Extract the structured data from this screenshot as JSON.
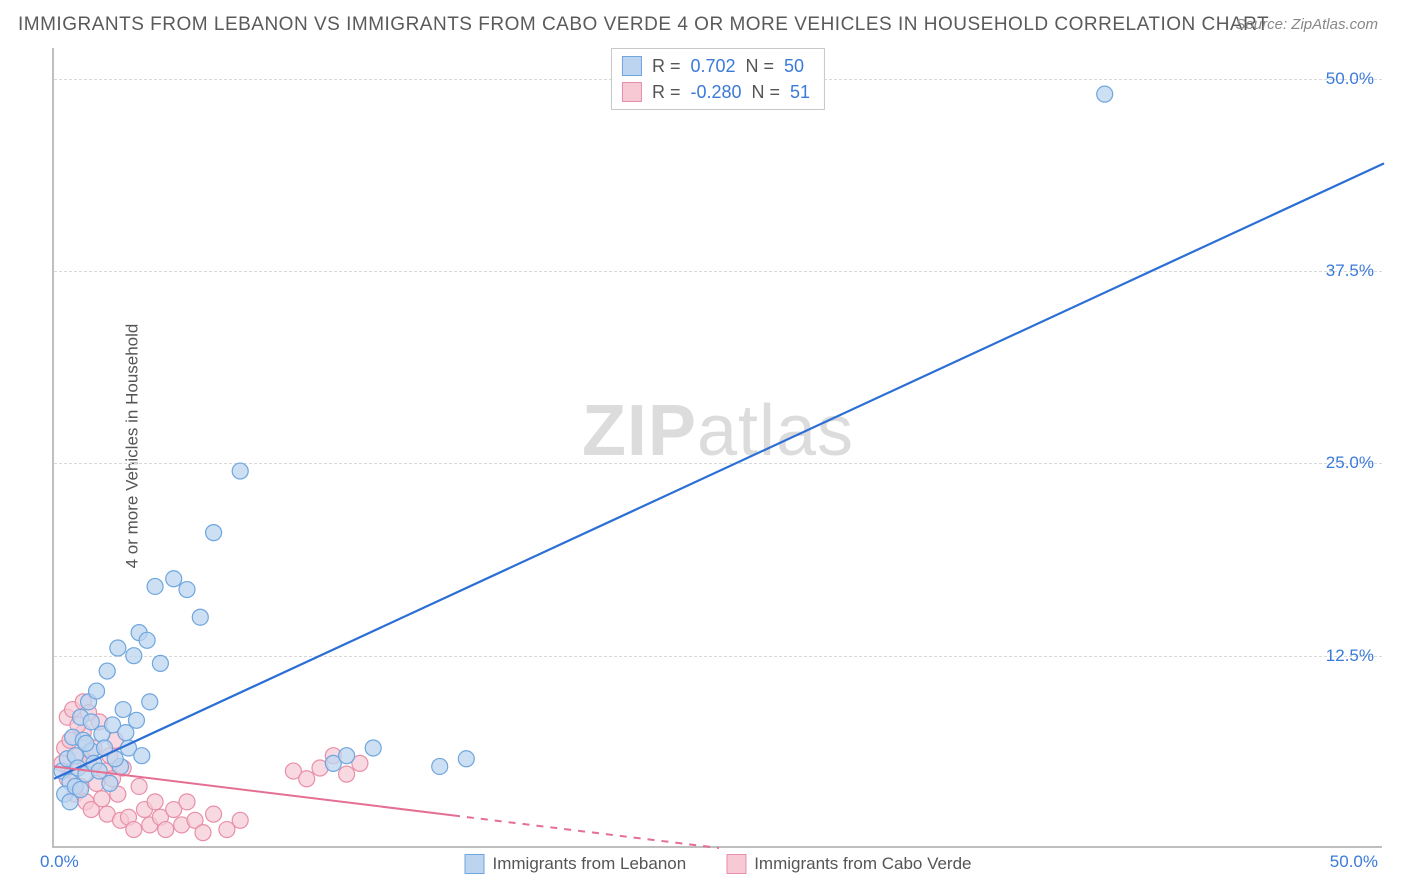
{
  "title": "IMMIGRANTS FROM LEBANON VS IMMIGRANTS FROM CABO VERDE 4 OR MORE VEHICLES IN HOUSEHOLD CORRELATION CHART",
  "source": "Source: ZipAtlas.com",
  "ylabel": "4 or more Vehicles in Household",
  "watermark_bold": "ZIP",
  "watermark_rest": "atlas",
  "chart": {
    "type": "scatter",
    "background_color": "#ffffff",
    "grid_color": "#d8d8d8",
    "axis_color": "#bfbfbf",
    "xlim": [
      0,
      50
    ],
    "ylim": [
      0,
      52
    ],
    "yticks": [
      12.5,
      25.0,
      37.5,
      50.0
    ],
    "ytick_labels": [
      "12.5%",
      "25.0%",
      "37.5%",
      "50.0%"
    ],
    "ytick_color": "#3a7ad9",
    "xtick_left": "0.0%",
    "xtick_right": "50.0%",
    "xtick_color": "#3a7ad9",
    "series": [
      {
        "name": "Immigrants from Lebanon",
        "color_fill": "#bcd4ef",
        "color_stroke": "#6ea6de",
        "r_label": "R =",
        "r_value": "0.702",
        "n_label": "N =",
        "n_value": "50",
        "value_color": "#3a7ad9",
        "marker_radius": 8,
        "marker_opacity": 0.75,
        "trend": {
          "x1": 0,
          "y1": 4.5,
          "x2": 50,
          "y2": 44.5,
          "stroke": "#2b6fd6",
          "width": 2.2,
          "dash_after_x": null
        },
        "points": [
          [
            0.3,
            5.0
          ],
          [
            0.5,
            5.8
          ],
          [
            0.6,
            4.3
          ],
          [
            0.7,
            7.2
          ],
          [
            0.8,
            6.0
          ],
          [
            0.9,
            5.2
          ],
          [
            1.0,
            8.5
          ],
          [
            1.1,
            7.0
          ],
          [
            1.2,
            4.8
          ],
          [
            1.3,
            9.5
          ],
          [
            1.4,
            6.3
          ],
          [
            1.5,
            5.5
          ],
          [
            1.6,
            10.2
          ],
          [
            1.8,
            7.4
          ],
          [
            2.0,
            11.5
          ],
          [
            2.2,
            8.0
          ],
          [
            2.4,
            13.0
          ],
          [
            2.6,
            9.0
          ],
          [
            2.8,
            6.5
          ],
          [
            3.0,
            12.5
          ],
          [
            3.2,
            14.0
          ],
          [
            3.5,
            13.5
          ],
          [
            3.8,
            17.0
          ],
          [
            4.0,
            12.0
          ],
          [
            4.5,
            17.5
          ],
          [
            5.0,
            16.8
          ],
          [
            5.5,
            15.0
          ],
          [
            6.0,
            20.5
          ],
          [
            7.0,
            24.5
          ],
          [
            2.5,
            5.3
          ],
          [
            3.3,
            6.0
          ],
          [
            1.7,
            5.0
          ],
          [
            0.4,
            3.5
          ],
          [
            0.6,
            3.0
          ],
          [
            0.8,
            4.0
          ],
          [
            1.0,
            3.8
          ],
          [
            1.2,
            6.8
          ],
          [
            1.4,
            8.2
          ],
          [
            1.9,
            6.5
          ],
          [
            10.5,
            5.5
          ],
          [
            11.0,
            6.0
          ],
          [
            12.0,
            6.5
          ],
          [
            14.5,
            5.3
          ],
          [
            15.5,
            5.8
          ],
          [
            2.1,
            4.2
          ],
          [
            2.3,
            5.8
          ],
          [
            2.7,
            7.5
          ],
          [
            3.1,
            8.3
          ],
          [
            3.6,
            9.5
          ],
          [
            39.5,
            49.0
          ]
        ]
      },
      {
        "name": "Immigrants from Cabo Verde",
        "color_fill": "#f6c9d4",
        "color_stroke": "#e88fa8",
        "r_label": "R =",
        "r_value": "-0.280",
        "n_label": "N =",
        "n_value": "51",
        "value_color": "#3a7ad9",
        "marker_radius": 8,
        "marker_opacity": 0.7,
        "trend": {
          "x1": 0,
          "y1": 5.3,
          "x2": 25,
          "y2": 0.0,
          "stroke": "#e56f93",
          "width": 2,
          "dash_after_x": 15
        },
        "points": [
          [
            0.3,
            5.5
          ],
          [
            0.4,
            6.5
          ],
          [
            0.5,
            4.5
          ],
          [
            0.6,
            7.0
          ],
          [
            0.7,
            5.0
          ],
          [
            0.8,
            3.5
          ],
          [
            0.9,
            6.0
          ],
          [
            1.0,
            4.0
          ],
          [
            1.1,
            7.5
          ],
          [
            1.2,
            3.0
          ],
          [
            1.3,
            5.5
          ],
          [
            1.4,
            2.5
          ],
          [
            1.5,
            6.5
          ],
          [
            1.6,
            4.2
          ],
          [
            1.7,
            8.2
          ],
          [
            1.8,
            3.2
          ],
          [
            1.9,
            5.0
          ],
          [
            2.0,
            2.2
          ],
          [
            2.1,
            6.0
          ],
          [
            2.2,
            4.5
          ],
          [
            2.3,
            7.0
          ],
          [
            2.4,
            3.5
          ],
          [
            2.5,
            1.8
          ],
          [
            2.6,
            5.2
          ],
          [
            2.8,
            2.0
          ],
          [
            3.0,
            1.2
          ],
          [
            3.2,
            4.0
          ],
          [
            3.4,
            2.5
          ],
          [
            3.6,
            1.5
          ],
          [
            3.8,
            3.0
          ],
          [
            4.0,
            2.0
          ],
          [
            4.2,
            1.2
          ],
          [
            4.5,
            2.5
          ],
          [
            4.8,
            1.5
          ],
          [
            5.0,
            3.0
          ],
          [
            5.3,
            1.8
          ],
          [
            5.6,
            1.0
          ],
          [
            6.0,
            2.2
          ],
          [
            6.5,
            1.2
          ],
          [
            7.0,
            1.8
          ],
          [
            0.5,
            8.5
          ],
          [
            0.7,
            9.0
          ],
          [
            0.9,
            8.0
          ],
          [
            1.1,
            9.5
          ],
          [
            1.3,
            8.8
          ],
          [
            9.0,
            5.0
          ],
          [
            9.5,
            4.5
          ],
          [
            10.0,
            5.2
          ],
          [
            10.5,
            6.0
          ],
          [
            11.0,
            4.8
          ],
          [
            11.5,
            5.5
          ]
        ]
      }
    ]
  },
  "legend": {
    "item1": "Immigrants from Lebanon",
    "item2": "Immigrants from Cabo Verde"
  }
}
